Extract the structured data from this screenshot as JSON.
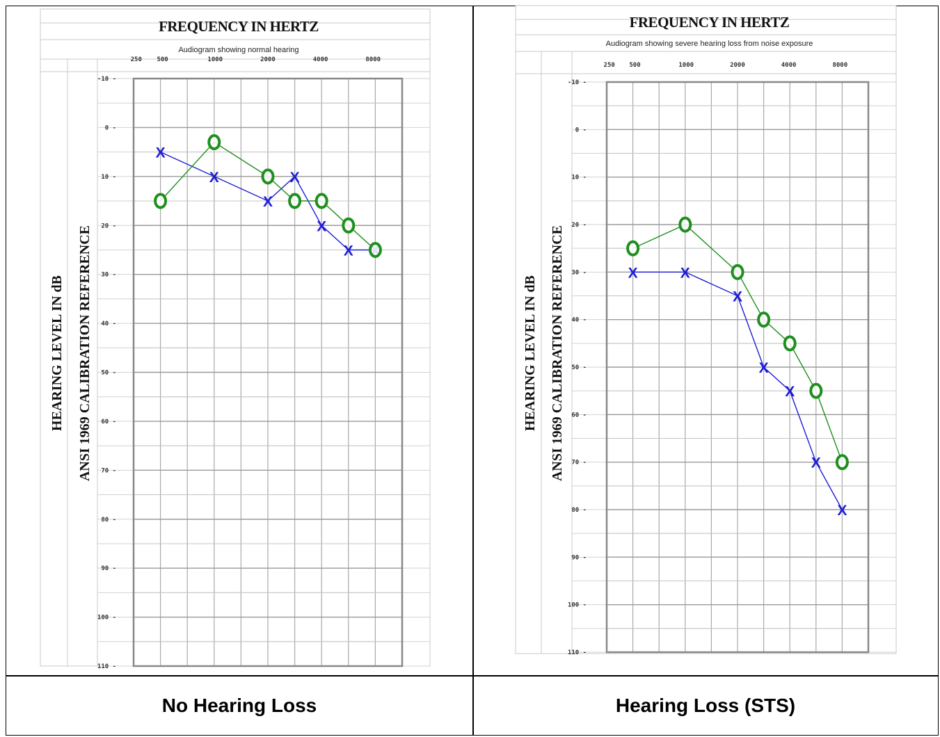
{
  "captions": {
    "left": "No Hearing Loss",
    "right": "Hearing Loss (STS)"
  },
  "colors": {
    "right_ear": "#1d1dd6",
    "left_ear": "#1f8f1f",
    "grid": "#a9a9a9",
    "plot_border": "#888888"
  },
  "chart_data": [
    {
      "type": "line",
      "title": "FREQUENCY IN HERTZ",
      "subtitle": "Audiogram showing normal hearing",
      "ylabel_1": "HEARING LEVEL IN dB",
      "ylabel_2": "ANSI 1969 CALIBRATION REFERENCE",
      "x_tick_labels": [
        "250",
        "500",
        "1000",
        "2000",
        "4000",
        "8000"
      ],
      "y_tick_labels": [
        "-10",
        "0",
        "10",
        "20",
        "30",
        "40",
        "50",
        "60",
        "70",
        "80",
        "90",
        "100",
        "110"
      ],
      "ylim": [
        -10,
        110
      ],
      "y_inverted": true,
      "grid": true,
      "series": [
        {
          "marker": "X",
          "color": "#1d1dd6",
          "points": [
            [
              1,
              5
            ],
            [
              3,
              10
            ],
            [
              5,
              15
            ],
            [
              6,
              10
            ],
            [
              7,
              20
            ],
            [
              8,
              25
            ],
            [
              9,
              25
            ]
          ]
        },
        {
          "marker": "O",
          "color": "#1f8f1f",
          "points": [
            [
              1,
              15
            ],
            [
              3,
              3
            ],
            [
              5,
              10
            ],
            [
              6,
              15
            ],
            [
              7,
              15
            ],
            [
              8,
              20
            ],
            [
              9,
              25
            ]
          ]
        }
      ]
    },
    {
      "type": "line",
      "title": "FREQUENCY IN HERTZ",
      "subtitle": "Audiogram showing severe hearing loss from noise exposure",
      "ylabel_1": "HEARING LEVEL IN dB",
      "ylabel_2": "ANSI 1969 CALIBRATION REFERENCE",
      "x_tick_labels": [
        "250",
        "500",
        "1000",
        "2000",
        "4000",
        "8000"
      ],
      "y_tick_labels": [
        "-10",
        "0",
        "10",
        "20",
        "30",
        "40",
        "50",
        "60",
        "70",
        "80",
        "90",
        "100",
        "110"
      ],
      "ylim": [
        -10,
        110
      ],
      "y_inverted": true,
      "grid": true,
      "series": [
        {
          "marker": "X",
          "color": "#1d1dd6",
          "points": [
            [
              1,
              30
            ],
            [
              3,
              30
            ],
            [
              5,
              35
            ],
            [
              6,
              50
            ],
            [
              7,
              55
            ],
            [
              8,
              70
            ],
            [
              9,
              80
            ]
          ]
        },
        {
          "marker": "O",
          "color": "#1f8f1f",
          "points": [
            [
              1,
              25
            ],
            [
              3,
              20
            ],
            [
              5,
              30
            ],
            [
              6,
              40
            ],
            [
              7,
              45
            ],
            [
              8,
              55
            ],
            [
              9,
              70
            ]
          ]
        }
      ]
    }
  ]
}
